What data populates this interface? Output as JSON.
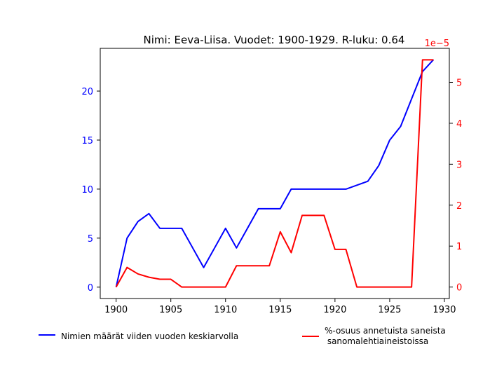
{
  "chart_data": {
    "type": "line",
    "title": "Nimi: Eeva-Liisa. Vuodet: 1900-1929. R-luku: 0.64",
    "xlabel": "",
    "xlim": [
      1898.55,
      1930.45
    ],
    "x_ticks": [
      1900,
      1905,
      1910,
      1915,
      1920,
      1925,
      1930
    ],
    "x": [
      1900,
      1901,
      1902,
      1903,
      1904,
      1905,
      1906,
      1907,
      1908,
      1909,
      1910,
      1911,
      1912,
      1913,
      1914,
      1915,
      1916,
      1917,
      1918,
      1919,
      1920,
      1921,
      1922,
      1923,
      1924,
      1925,
      1926,
      1927,
      1928,
      1929
    ],
    "left_axis": {
      "color": "#0000ff",
      "ylim": [
        -1.16,
        24.36
      ],
      "ticks": [
        0,
        5,
        10,
        15,
        20
      ]
    },
    "right_axis": {
      "color": "#ff0000",
      "ylim": [
        -0.28,
        5.83
      ],
      "ticks": [
        0,
        1,
        2,
        3,
        4,
        5
      ],
      "offset_label": "1e−5"
    },
    "series": [
      {
        "name": "Nimien määrät viiden vuoden keskiarvolla",
        "axis": "left",
        "color": "#0000ff",
        "values": [
          0,
          5,
          6.7,
          7.5,
          6,
          6,
          6,
          4,
          2,
          4,
          6,
          4,
          6,
          8,
          8,
          8,
          10,
          10,
          10,
          10,
          10,
          10,
          10.4,
          10.8,
          12.4,
          15,
          16.4,
          19.2,
          22,
          23.2
        ]
      },
      {
        "name": "%-osuus annetuista saneista\n sanomalehtiaineistoissa",
        "axis": "right",
        "color": "#ff0000",
        "values": [
          0,
          0.48,
          0.32,
          0.24,
          0.19,
          0.19,
          0,
          0,
          0,
          0,
          0,
          0.52,
          0.52,
          0.52,
          0.52,
          1.35,
          0.84,
          1.75,
          1.75,
          1.75,
          0.92,
          0.92,
          0,
          0,
          0,
          0,
          0,
          0,
          5.55,
          5.55
        ]
      }
    ],
    "legend_placement": "below"
  }
}
